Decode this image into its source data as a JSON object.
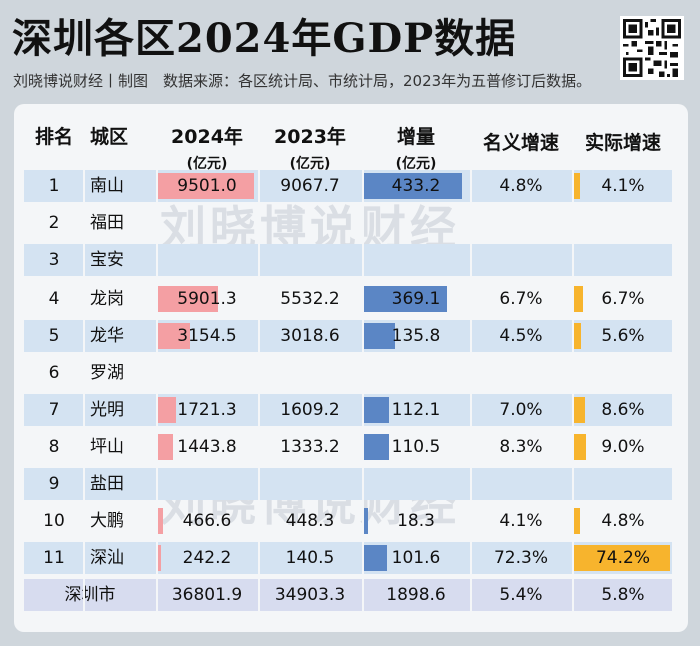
{
  "header": {
    "title": "深圳各区2024年GDP数据",
    "subtitle": "刘晓博说财经丨制图　数据来源：各区统计局、市统计局，2023年为五普修订后数据。"
  },
  "watermark": "刘晓博说财经",
  "table": {
    "headers": {
      "rank": "排名",
      "city": "城区",
      "y2024": "2024年",
      "y2023": "2023年",
      "increase": "增量",
      "unit": "(亿元)",
      "nominal": "名义增速",
      "real": "实际增速"
    },
    "rows": [
      {
        "rank": "1",
        "city": "南山",
        "v2024": "9501.0",
        "v2023": "9067.7",
        "increase": "433.2",
        "nominal": "4.8%",
        "real": "4.1%"
      },
      {
        "rank": "2",
        "city": "福田",
        "v2024": "",
        "v2023": "",
        "increase": "",
        "nominal": "",
        "real": ""
      },
      {
        "rank": "3",
        "city": "宝安",
        "v2024": "",
        "v2023": "",
        "increase": "",
        "nominal": "",
        "real": ""
      },
      {
        "rank": "4",
        "city": "龙岗",
        "v2024": "5901.3",
        "v2023": "5532.2",
        "increase": "369.1",
        "nominal": "6.7%",
        "real": "6.7%"
      },
      {
        "rank": "5",
        "city": "龙华",
        "v2024": "3154.5",
        "v2023": "3018.6",
        "increase": "135.8",
        "nominal": "4.5%",
        "real": "5.6%"
      },
      {
        "rank": "6",
        "city": "罗湖",
        "v2024": "",
        "v2023": "",
        "increase": "",
        "nominal": "",
        "real": ""
      },
      {
        "rank": "7",
        "city": "光明",
        "v2024": "1721.3",
        "v2023": "1609.2",
        "increase": "112.1",
        "nominal": "7.0%",
        "real": "8.6%"
      },
      {
        "rank": "8",
        "city": "坪山",
        "v2024": "1443.8",
        "v2023": "1333.2",
        "increase": "110.5",
        "nominal": "8.3%",
        "real": "9.0%"
      },
      {
        "rank": "9",
        "city": "盐田",
        "v2024": "",
        "v2023": "",
        "increase": "",
        "nominal": "",
        "real": ""
      },
      {
        "rank": "10",
        "city": "大鹏",
        "v2024": "466.6",
        "v2023": "448.3",
        "increase": "18.3",
        "nominal": "4.1%",
        "real": "4.8%"
      },
      {
        "rank": "11",
        "city": "深汕",
        "v2024": "242.2",
        "v2023": "140.5",
        "increase": "101.6",
        "nominal": "72.3%",
        "real": "74.2%"
      }
    ],
    "total": {
      "city": "深圳市",
      "v2024": "36801.9",
      "v2023": "34903.3",
      "increase": "1898.6",
      "nominal": "5.4%",
      "real": "5.8%"
    }
  },
  "colors": {
    "gdp_bar": "#f49fa3",
    "increase_bar": "#5b86c5",
    "real_growth_bar": "#f7b42d",
    "row_shade": "#d4e3f2"
  }
}
